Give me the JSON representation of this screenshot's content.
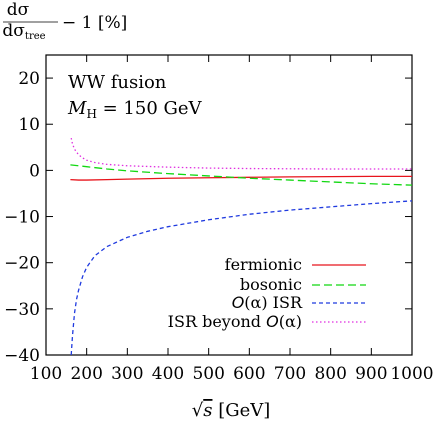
{
  "chart_data": {
    "type": "line",
    "ylabel": {
      "num": "dσ",
      "den": "dσ",
      "den_sub": "tree",
      "suffix": " − 1 [%]"
    },
    "xlabel": {
      "prefix": "√",
      "var": "s",
      "unit": " [GeV]"
    },
    "xlim": [
      100,
      1000
    ],
    "ylim": [
      -40,
      25
    ],
    "xticks": [
      100,
      200,
      300,
      400,
      500,
      600,
      700,
      800,
      900,
      1000
    ],
    "yticks": [
      -40,
      -30,
      -20,
      -10,
      0,
      10,
      20
    ],
    "ytick_labels": [
      "−40",
      "−30",
      "−20",
      "−10",
      "0",
      "10",
      "20"
    ],
    "grid": false,
    "legend_position": "bottom-right",
    "annotations": {
      "line1": "WW fusion",
      "mh_symbol": "M",
      "mh_sub": "H",
      "mh_value": " = 150 GeV"
    },
    "series": [
      {
        "name": "fermionic",
        "color": "#e8141c",
        "dash": "solid",
        "x": [
          160,
          180,
          200,
          250,
          300,
          400,
          500,
          600,
          700,
          800,
          900,
          1000
        ],
        "y": [
          -2.0,
          -2.1,
          -2.1,
          -2.0,
          -1.9,
          -1.7,
          -1.6,
          -1.5,
          -1.4,
          -1.35,
          -1.3,
          -1.3
        ]
      },
      {
        "name": "bosonic",
        "color": "#12d812",
        "dash": "long",
        "x": [
          160,
          180,
          200,
          250,
          300,
          400,
          500,
          600,
          700,
          800,
          900,
          1000
        ],
        "y": [
          1.2,
          1.0,
          0.8,
          0.3,
          -0.1,
          -0.7,
          -1.2,
          -1.7,
          -2.1,
          -2.5,
          -2.9,
          -3.2
        ]
      },
      {
        "name": "ISR",
        "name_prefix": "O",
        "name_alpha": "(α) ",
        "color": "#1f3adf",
        "dash": "short",
        "x": [
          162,
          165,
          170,
          175,
          180,
          190,
          200,
          220,
          250,
          300,
          350,
          400,
          500,
          600,
          700,
          800,
          900,
          1000
        ],
        "y": [
          -40,
          -36,
          -31,
          -28,
          -26,
          -23,
          -21,
          -18.5,
          -16.5,
          -14.5,
          -13.2,
          -12.2,
          -10.7,
          -9.5,
          -8.6,
          -7.9,
          -7.2,
          -6.6
        ]
      },
      {
        "name": "ISR beyond ",
        "name_prefix": "",
        "name_mid": "O",
        "name_alpha": "(α)",
        "color": "#e02de0",
        "dash": "dotted",
        "x": [
          162,
          165,
          170,
          180,
          190,
          200,
          220,
          250,
          300,
          400,
          500,
          600,
          700,
          800,
          900,
          1000
        ],
        "y": [
          7.0,
          5.8,
          4.6,
          3.4,
          2.7,
          2.2,
          1.7,
          1.3,
          1.0,
          0.7,
          0.5,
          0.4,
          0.35,
          0.3,
          0.3,
          0.3
        ]
      }
    ]
  }
}
